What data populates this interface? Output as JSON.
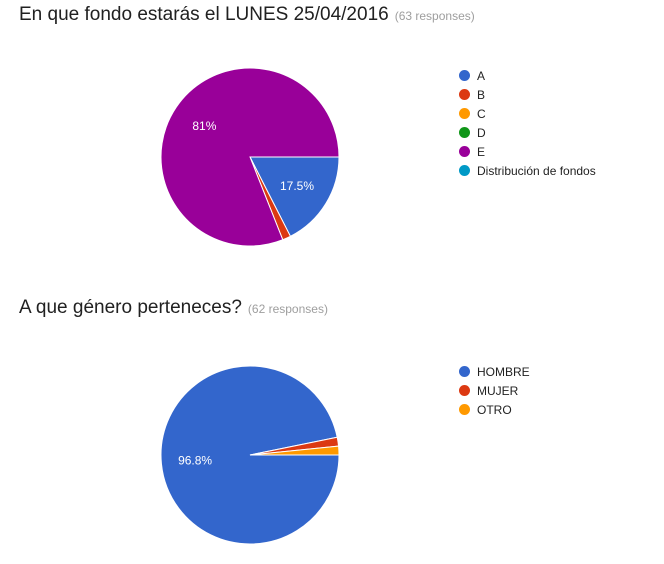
{
  "chart_data": [
    {
      "type": "pie",
      "title": "En que fondo estarás el LUNES 25/04/2016",
      "response_count": "(63 responses)",
      "categories": [
        "A",
        "B",
        "C",
        "D",
        "E",
        "Distribución de fondos"
      ],
      "values": [
        17.5,
        1.5,
        0,
        0,
        81,
        0
      ],
      "slice_labels": [
        "17.5%",
        "",
        "",
        "",
        "81%",
        ""
      ],
      "colors": [
        "#3366cc",
        "#dc3912",
        "#ff9900",
        "#109618",
        "#990099",
        "#0099c6"
      ],
      "legend_position": "right"
    },
    {
      "type": "pie",
      "title": "A que género perteneces?",
      "response_count": "(62 responses)",
      "categories": [
        "HOMBRE",
        "MUJER",
        "OTRO"
      ],
      "values": [
        96.8,
        1.6,
        1.6
      ],
      "slice_labels": [
        "96.8%",
        "",
        ""
      ],
      "colors": [
        "#3366cc",
        "#dc3912",
        "#ff9900"
      ],
      "legend_position": "right"
    }
  ]
}
